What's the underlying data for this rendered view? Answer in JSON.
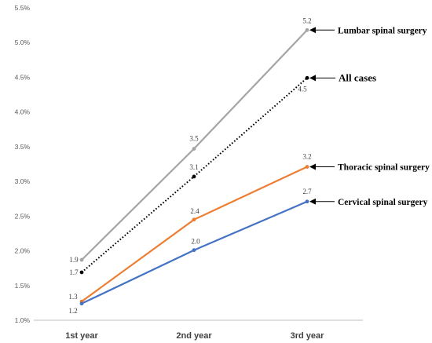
{
  "chart_data": {
    "type": "line",
    "categories": [
      "1st year",
      "2nd year",
      "3rd year"
    ],
    "ylim": [
      1.0,
      5.5
    ],
    "yticks": [
      "1.0%",
      "1.5%",
      "2.0%",
      "2.5%",
      "3.0%",
      "3.5%",
      "4.0%",
      "4.5%",
      "5.0%",
      "5.5%"
    ],
    "grid": false,
    "legend": "none",
    "title": "",
    "xlabel": "",
    "ylabel": "",
    "series": [
      {
        "name": "Lumbar spinal surgery",
        "values": [
          1.87,
          3.47,
          5.18
        ],
        "labels": [
          "1.9",
          "3.5",
          "5.2"
        ],
        "color": "#a5a5a5",
        "style": "solid"
      },
      {
        "name": "All cases",
        "values": [
          1.69,
          3.07,
          4.49
        ],
        "labels": [
          "1.7",
          "3.1",
          "4.5"
        ],
        "color": "#000000",
        "style": "dotted"
      },
      {
        "name": "Thoracic spinal surgery",
        "values": [
          1.27,
          2.45,
          3.21
        ],
        "labels": [
          "1.3",
          "2.4",
          "3.2"
        ],
        "color": "#ed7d31",
        "style": "solid"
      },
      {
        "name": "Cervical spinal surgery",
        "values": [
          1.24,
          2.01,
          2.71
        ],
        "labels": [
          "1.2",
          "2.0",
          "2.7"
        ],
        "color": "#4472c4",
        "style": "solid"
      }
    ]
  }
}
